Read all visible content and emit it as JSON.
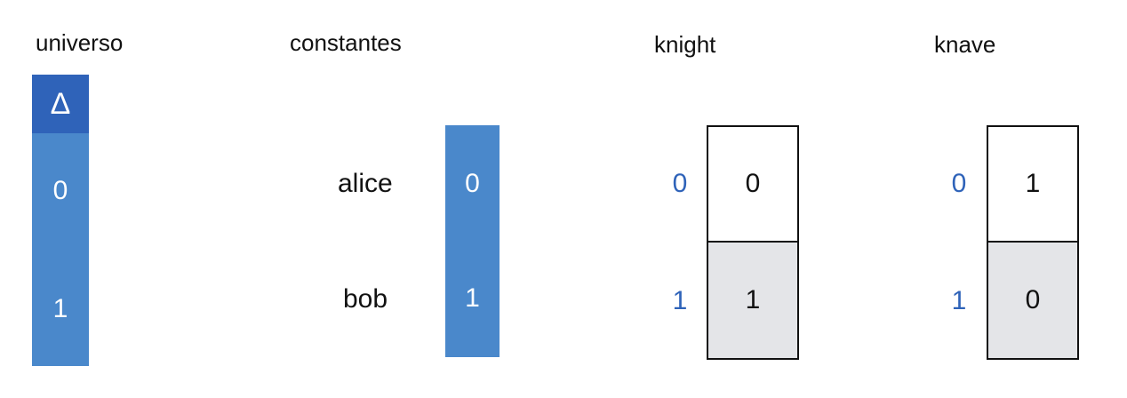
{
  "colors": {
    "header_blue": "#2f63b9",
    "cell_blue": "#4a88cb",
    "index_blue": "#2f63b9",
    "shaded_cell": "#e4e5e8",
    "border": "#111111"
  },
  "universo": {
    "title": "universo",
    "delta": "Δ",
    "values": [
      "0",
      "1"
    ]
  },
  "constantes": {
    "title": "constantes",
    "names": [
      "alice",
      "bob"
    ],
    "values": [
      "0",
      "1"
    ]
  },
  "knight": {
    "title": "knight",
    "indices": [
      "0",
      "1"
    ],
    "values": [
      "0",
      "1"
    ]
  },
  "knave": {
    "title": "knave",
    "indices": [
      "0",
      "1"
    ],
    "values": [
      "1",
      "0"
    ]
  }
}
